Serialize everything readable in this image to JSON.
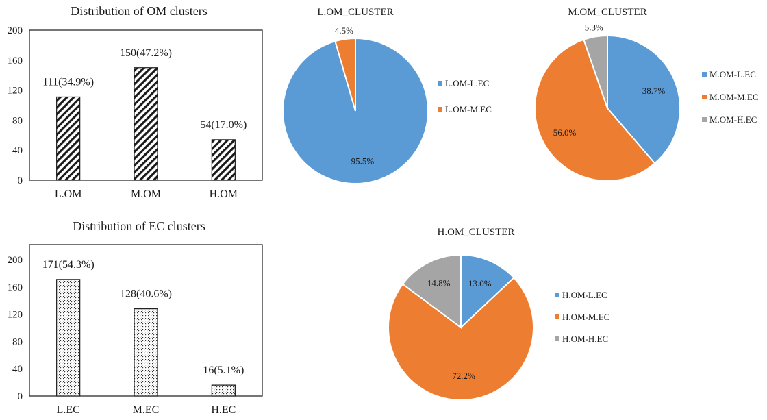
{
  "chart_data": [
    {
      "type": "bar",
      "title": "Distribution of OM clusters",
      "categories": [
        "L.OM",
        "M.OM",
        "H.OM"
      ],
      "values": [
        111,
        150,
        54
      ],
      "data_labels": [
        "111(34.9%)",
        "150(47.2%)",
        "54(17.0%)"
      ],
      "ylim": [
        0,
        200
      ],
      "yticks": [
        "0",
        "40",
        "80",
        "120",
        "160",
        "200"
      ],
      "pattern": "diagonal-hatch",
      "grid": false
    },
    {
      "type": "bar",
      "title": "Distribution of EC clusters",
      "categories": [
        "L.EC",
        "M.EC",
        "H.EC"
      ],
      "values": [
        171,
        128,
        16
      ],
      "data_labels": [
        "171(54.3%)",
        "128(40.6%)",
        "16(5.1%)"
      ],
      "ylim": [
        0,
        200
      ],
      "yticks": [
        "0",
        "40",
        "80",
        "120",
        "160",
        "200"
      ],
      "pattern": "dotted",
      "grid": false
    },
    {
      "type": "pie",
      "title": "L.OM_CLUSTER",
      "slices": [
        {
          "label": "L.OM-L.EC",
          "value": 95.5,
          "text": "95.5%",
          "color": "#5b9bd5"
        },
        {
          "label": "L.OM-M.EC",
          "value": 4.5,
          "text": "4.5%",
          "color": "#ed7d31"
        }
      ],
      "legend": "right"
    },
    {
      "type": "pie",
      "title": "M.OM_CLUSTER",
      "slices": [
        {
          "label": "M.OM-L.EC",
          "value": 38.7,
          "text": "38.7%",
          "color": "#5b9bd5"
        },
        {
          "label": "M.OM-M.EC",
          "value": 56.0,
          "text": "56.0%",
          "color": "#ed7d31"
        },
        {
          "label": "M.OM-H.EC",
          "value": 5.3,
          "text": "5.3%",
          "color": "#a5a5a5"
        }
      ],
      "legend": "right"
    },
    {
      "type": "pie",
      "title": "H.OM_CLUSTER",
      "slices": [
        {
          "label": "H.OM-L.EC",
          "value": 13.0,
          "text": "13.0%",
          "color": "#5b9bd5"
        },
        {
          "label": "H.OM-M.EC",
          "value": 72.2,
          "text": "72.2%",
          "color": "#ed7d31"
        },
        {
          "label": "H.OM-H.EC",
          "value": 14.8,
          "text": "14.8%",
          "color": "#a5a5a5"
        }
      ],
      "legend": "right"
    }
  ]
}
